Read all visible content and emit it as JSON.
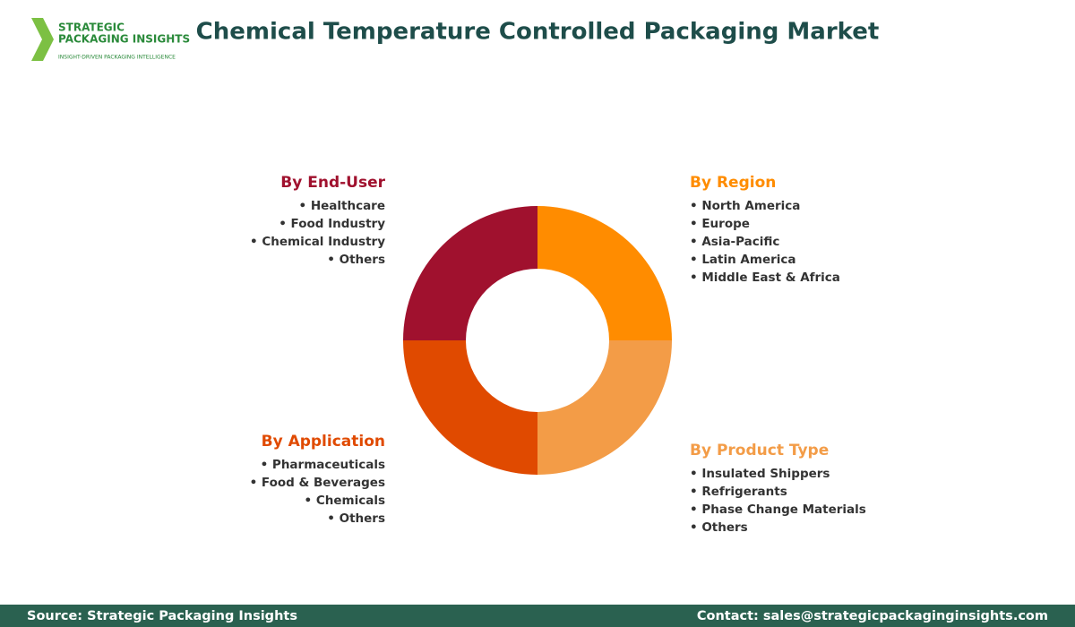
{
  "logo": {
    "line1": "STRATEGIC",
    "line2": "PACKAGING INSIGHTS",
    "tagline": "INSIGHT-DRIVEN PACKAGING INTELLIGENCE"
  },
  "title": "Chemical Temperature Controlled Packaging Market",
  "segments": [
    {
      "heading": "By End-User",
      "items": [
        "• Healthcare",
        "• Food Industry",
        "• Chemical Industry",
        "• Others"
      ]
    },
    {
      "heading": "By Region",
      "items": [
        "• North America",
        "• Europe",
        "• Asia-Pacific",
        "• Latin America",
        "• Middle East & Africa"
      ]
    },
    {
      "heading": "By Application",
      "items": [
        "• Pharmaceuticals",
        "• Food & Beverages",
        "• Chemicals",
        "• Others"
      ]
    },
    {
      "heading": "By Product Type",
      "items": [
        "• Insulated Shippers",
        "• Refrigerants",
        "• Phase Change Materials",
        "• Others"
      ]
    }
  ],
  "footer": {
    "source": "Source: Strategic Packaging Insights",
    "contact": "Contact: sales@strategicpackaginginsights.com"
  }
}
